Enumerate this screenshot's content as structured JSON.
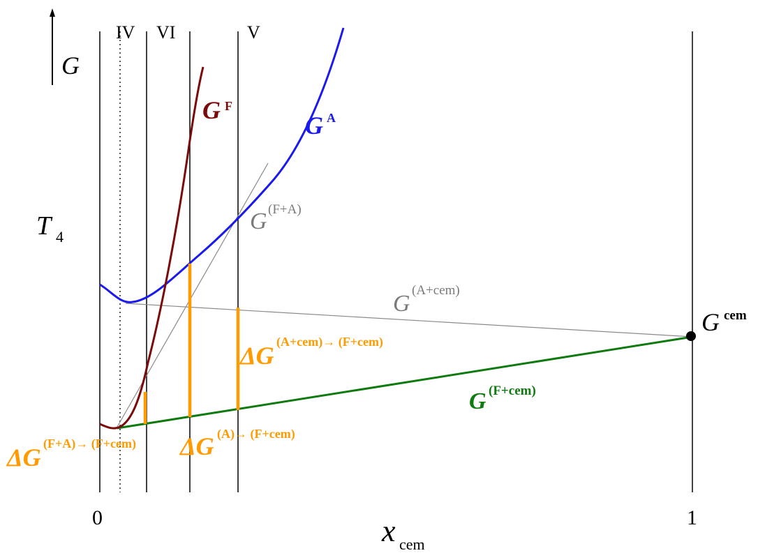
{
  "colors": {
    "ferrite": "#7b0a0a",
    "austenite": "#1a1aee",
    "tangent": "#7a7a7a",
    "ferrite_cementite": "#0f7a0f",
    "delta": "#ff9a00",
    "axes": "#000000"
  },
  "axes": {
    "y_label": "G",
    "temperature_label": "T",
    "temperature_subscript": "4",
    "x_label": "x",
    "x_label_subscript": "cem",
    "tick_zero": "0",
    "tick_one": "1"
  },
  "regions": {
    "r1": "IV",
    "r2": "VI",
    "r3": "V"
  },
  "curves": {
    "ferrite": {
      "base": "G",
      "sup": "F"
    },
    "austenite": {
      "base": "G",
      "sup": "A"
    },
    "ferrite_austenite": {
      "base": "G",
      "sup": "(F+A)"
    },
    "austenite_cementite": {
      "base": "G",
      "sup": "(A+cem)"
    },
    "ferrite_cementite": {
      "base": "G",
      "sup": "(F+cem)"
    },
    "cementite": {
      "base": "G",
      "sup": "cem"
    }
  },
  "deltas": {
    "a_cem_to_f_cem": {
      "base": "ΔG",
      "sup": "(A+cem)→ (F+cem)"
    },
    "fa_to_fcem": {
      "base": "ΔG",
      "sup": "(F+A)→ (F+cem)"
    },
    "a_to_fcem": {
      "base": "ΔG",
      "sup": "(A)→ (F+cem)"
    }
  }
}
